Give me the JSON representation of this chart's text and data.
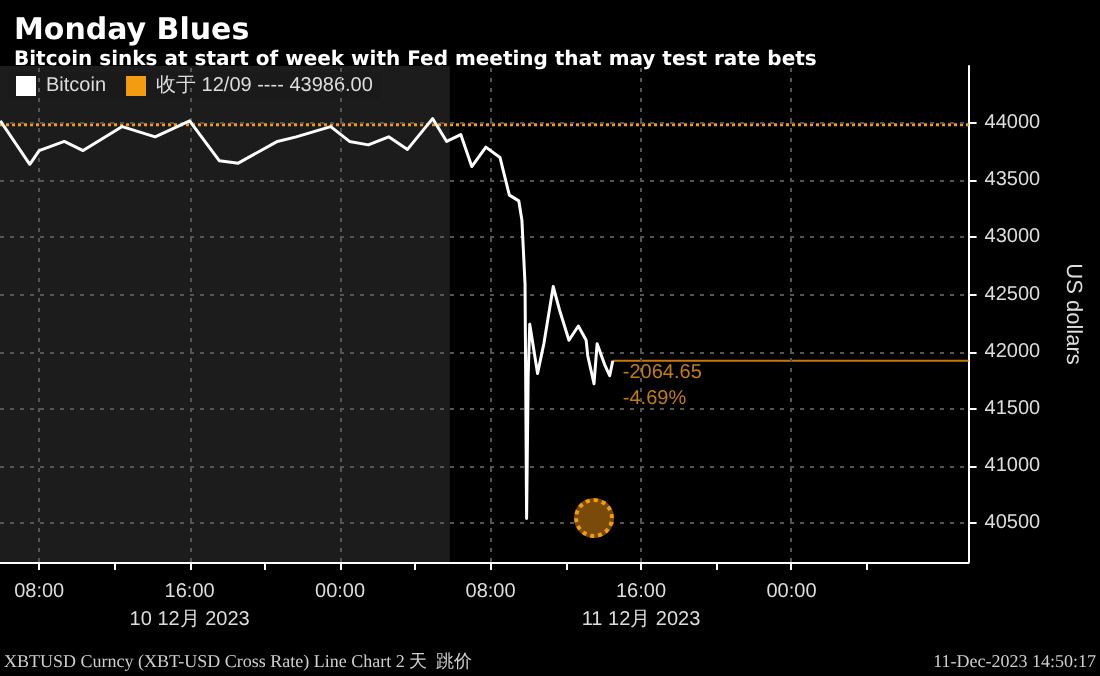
{
  "chart_data": {
    "type": "line",
    "title": "Monday Blues",
    "subtitle": "Bitcoin sinks at start of week with Fed meeting that may test rate bets",
    "ylabel": "US dollars",
    "x": [
      "2023-12-10T05:56",
      "2023-12-10T07:30",
      "2023-12-10T08:00",
      "2023-12-10T09:20",
      "2023-12-10T10:20",
      "2023-12-10T12:25",
      "2023-12-10T14:10",
      "2023-12-10T16:00",
      "2023-12-10T17:35",
      "2023-12-10T18:35",
      "2023-12-10T20:40",
      "2023-12-10T21:40",
      "2023-12-10T23:30",
      "2023-12-11T00:30",
      "2023-12-11T01:30",
      "2023-12-11T02:35",
      "2023-12-11T03:35",
      "2023-12-11T04:55",
      "2023-12-11T05:40",
      "2023-12-11T06:25",
      "2023-12-11T07:00",
      "2023-12-11T07:45",
      "2023-12-11T08:30",
      "2023-12-11T09:00",
      "2023-12-11T09:30",
      "2023-12-11T09:40",
      "2023-12-11T09:50",
      "2023-12-11T09:55",
      "2023-12-11T10:00",
      "2023-12-11T10:05",
      "2023-12-11T10:30",
      "2023-12-11T10:50",
      "2023-12-11T11:20",
      "2023-12-11T11:40",
      "2023-12-11T12:10",
      "2023-12-11T12:40",
      "2023-12-11T13:05",
      "2023-12-11T13:10",
      "2023-12-11T13:30",
      "2023-12-11T13:40",
      "2023-12-11T14:05",
      "2023-12-11T14:20",
      "2023-12-11T14:30"
    ],
    "series": [
      {
        "name": "Bitcoin",
        "color": "#ffffff",
        "values": [
          44020,
          43640,
          43760,
          43840,
          43760,
          43970,
          43880,
          44020,
          43670,
          43650,
          43840,
          43880,
          43970,
          43840,
          43810,
          43880,
          43770,
          44040,
          43840,
          43900,
          43620,
          43790,
          43700,
          43370,
          43320,
          43150,
          42590,
          40540,
          41790,
          42240,
          41810,
          42070,
          42570,
          42365,
          42100,
          42225,
          42100,
          41965,
          41720,
          42070,
          41880,
          41790,
          41921.35
        ]
      },
      {
        "name": "收于 12/09 ---- 43986.00",
        "color": "#f39c12",
        "line_style": "dotted",
        "x": [
          "2023-12-10T05:55",
          "2023-12-12T09:25"
        ],
        "values": [
          43986,
          43986
        ]
      }
    ],
    "xlim": [
      "2023-12-10T05:55",
      "2023-12-12T09:25"
    ],
    "xticks": [
      {
        "value": "2023-12-10T08:00",
        "label": "08:00"
      },
      {
        "value": "2023-12-10T12:00",
        "label": null
      },
      {
        "value": "2023-12-10T16:00",
        "label": "16:00\n10 12月 2023"
      },
      {
        "value": "2023-12-10T20:00",
        "label": null
      },
      {
        "value": "2023-12-11T00:00",
        "label": "00:00"
      },
      {
        "value": "2023-12-11T04:00",
        "label": null
      },
      {
        "value": "2023-12-11T08:00",
        "label": "08:00"
      },
      {
        "value": "2023-12-11T12:00",
        "label": null
      },
      {
        "value": "2023-12-11T16:00",
        "label": "16:00\n11 12月 2023"
      },
      {
        "value": "2023-12-11T20:00",
        "label": null
      },
      {
        "value": "2023-12-12T00:00",
        "label": "00:00"
      },
      {
        "value": "2023-12-12T04:00",
        "label": null
      }
    ],
    "ylim": [
      40160,
      44500
    ],
    "yticks": [
      40500,
      41000,
      41500,
      42000,
      42500,
      43000,
      43500,
      44000
    ],
    "grid": true,
    "legend": "top left",
    "marker": "none",
    "line_style": "solid",
    "bands": [
      {
        "axis": "x",
        "from": "2023-12-10T05:55",
        "to": "2023-12-11T05:50",
        "color": "#1c1c1c"
      }
    ],
    "ref_lines": [
      {
        "axis": "y",
        "value": 41921.35,
        "color": "#c8780a"
      }
    ],
    "annotations": [
      {
        "text": "-2064.65",
        "x": "2023-12-11T14:30",
        "y": 41921.35
      },
      {
        "text": "-4.69%",
        "x": "2023-12-11T14:30",
        "y": 41921.35
      },
      "XBTUSD Curncy (XBT-USD Cross Rate) Line Chart 2 天  跳价",
      "11-Dec-2023 14:50:17"
    ]
  }
}
